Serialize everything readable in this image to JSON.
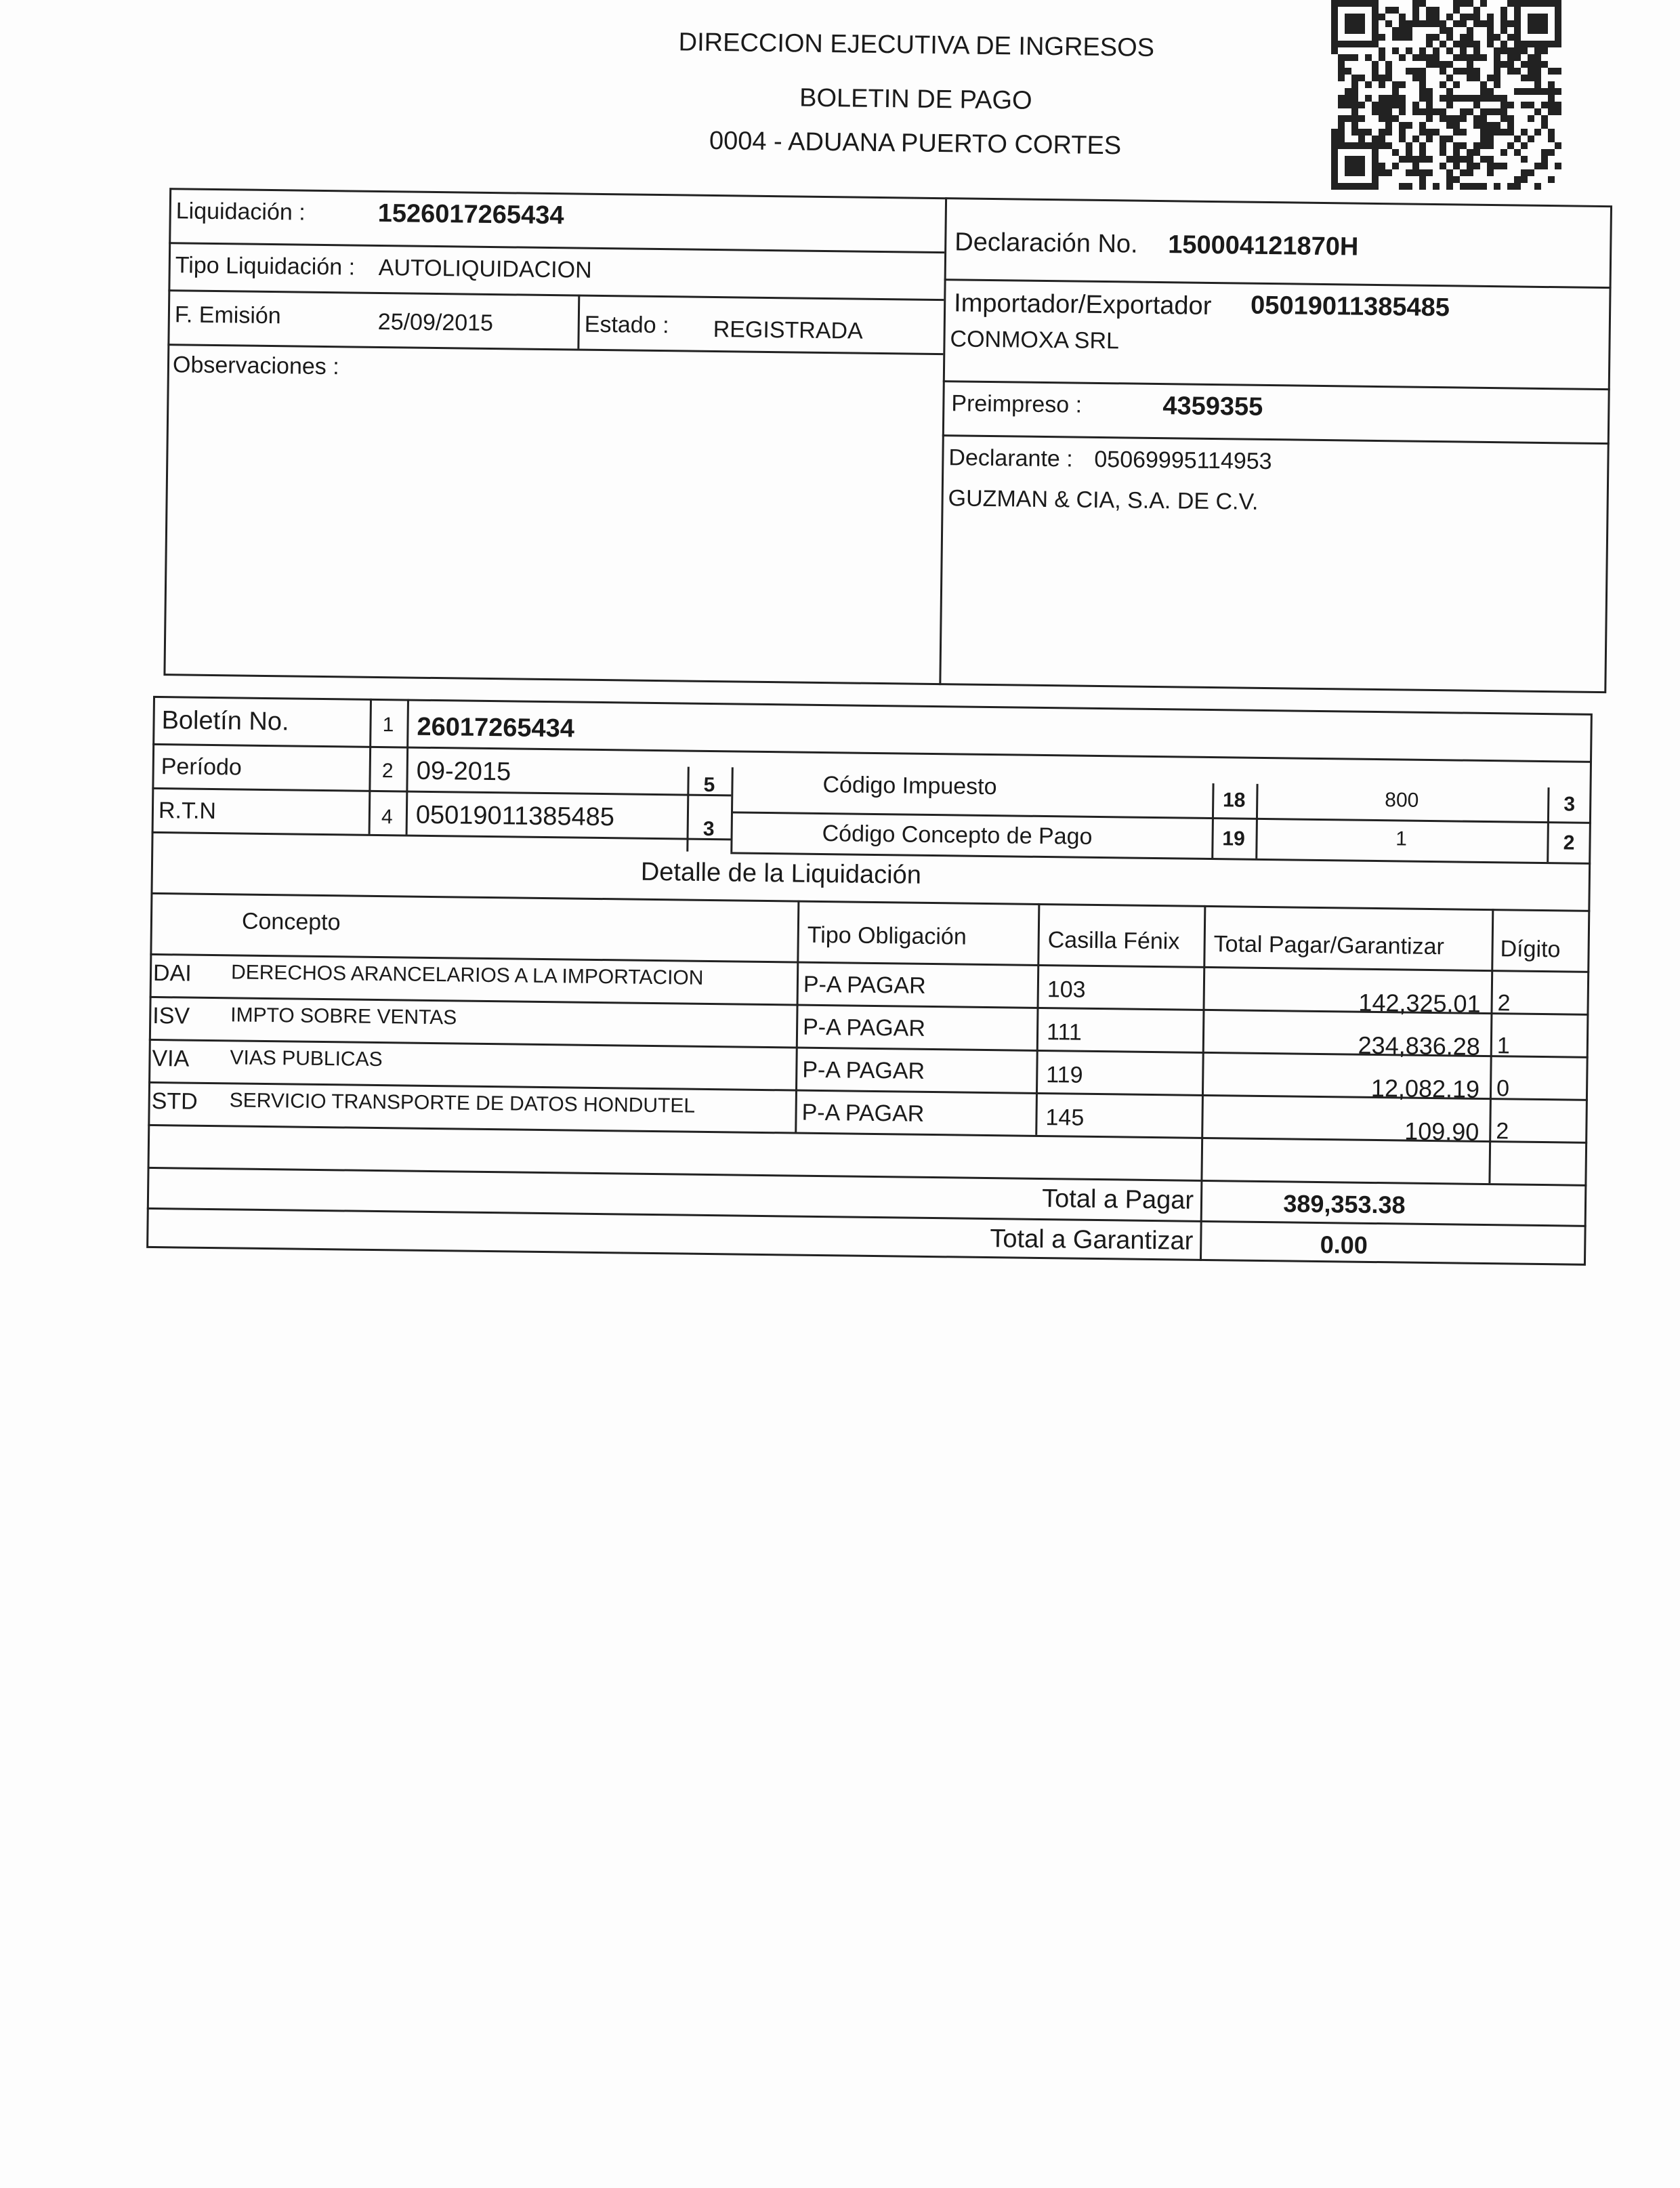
{
  "header": {
    "line1": "DIRECCION EJECUTIVA DE INGRESOS",
    "line2": "BOLETIN DE PAGO",
    "line3": "0004 - ADUANA PUERTO CORTES"
  },
  "info": {
    "liquidacion_label": "Liquidación :",
    "liquidacion": "1526017265434",
    "tipo_label": "Tipo Liquidación :",
    "tipo": "AUTOLIQUIDACION",
    "emision_label": "F. Emisión",
    "emision": "25/09/2015",
    "estado_label": "Estado :",
    "estado": "REGISTRADA",
    "observaciones_label": "Observaciones :",
    "declaracion_label": "Declaración No.",
    "declaracion": "150004121870H",
    "importador_label": "Importador/Exportador",
    "importador_rtn": "05019011385485",
    "importador_name": "CONMOXA SRL",
    "preimpreso_label": "Preimpreso :",
    "preimpreso": "4359355",
    "declarante_label": "Declarante :",
    "declarante_rtn": "05069995114953",
    "declarante_name": "GUZMAN & CIA, S.A. DE C.V."
  },
  "boletin": {
    "boletin_label": "Boletín No.",
    "boletin_n": "1",
    "boletin": "26017265434",
    "periodo_label": "Período",
    "periodo_n": "2",
    "periodo": "09-2015",
    "rtn_label": "R.T.N",
    "rtn_n": "4",
    "rtn": "05019011385485",
    "n5": "5",
    "n3": "3",
    "codigo_impuesto_label": "Código Impuesto",
    "n18": "18",
    "codigo_impuesto": "800",
    "ci_digit": "3",
    "codigo_concepto_label": "Código Concepto de Pago",
    "n19": "19",
    "codigo_concepto": "1",
    "cc_digit": "2"
  },
  "detalle": {
    "title": "Detalle de la Liquidación",
    "headers": [
      "Concepto",
      "Tipo Obligación",
      "Casilla Fénix",
      "Total Pagar/Garantizar",
      "Dígito"
    ],
    "rows": [
      {
        "code": "DAI",
        "concepto": "DERECHOS ARANCELARIOS A LA IMPORTACION",
        "tipo": "P-A PAGAR",
        "casilla": "103",
        "total": "142,325.01",
        "digito": "2"
      },
      {
        "code": "ISV",
        "concepto": "IMPTO SOBRE VENTAS",
        "tipo": "P-A PAGAR",
        "casilla": "111",
        "total": "234,836.28",
        "digito": "1"
      },
      {
        "code": "VIA",
        "concepto": "VIAS PUBLICAS",
        "tipo": "P-A PAGAR",
        "casilla": "119",
        "total": "12,082.19",
        "digito": "0"
      },
      {
        "code": "STD",
        "concepto": "SERVICIO TRANSPORTE DE DATOS HONDUTEL",
        "tipo": "P-A PAGAR",
        "casilla": "145",
        "total": "109.90",
        "digito": "2"
      }
    ],
    "total_pagar_label": "Total  a Pagar",
    "total_pagar": "389,353.38",
    "total_garantizar_label": "Total  a Garantizar",
    "total_garantizar": "0.00"
  },
  "icons": {
    "qr": "qr-code"
  }
}
